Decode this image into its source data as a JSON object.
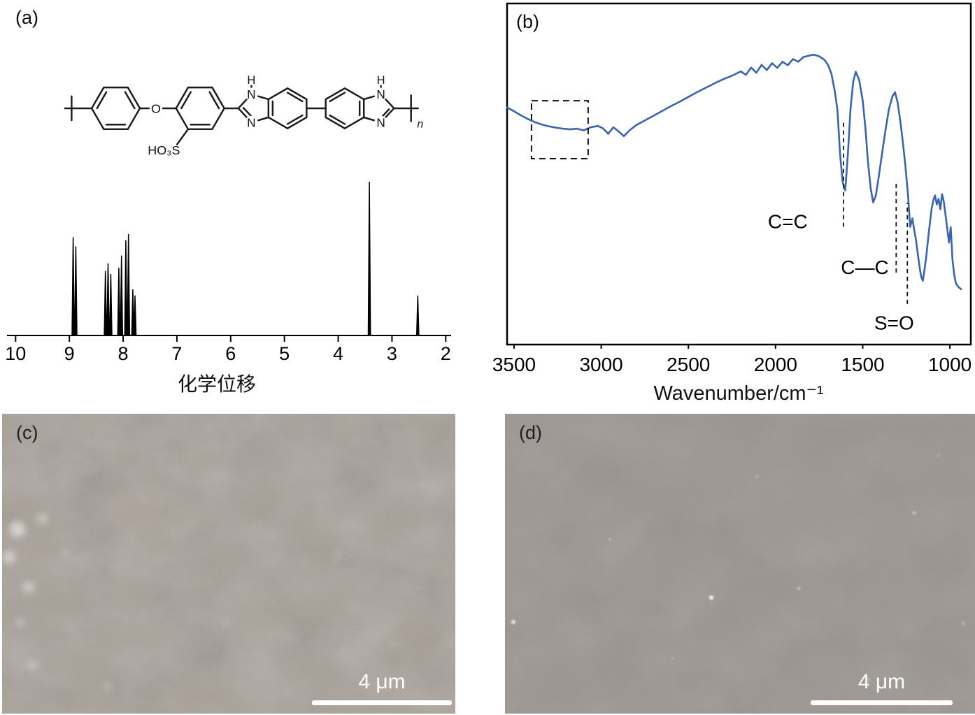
{
  "panels": {
    "a": {
      "label": "(a)"
    },
    "b": {
      "label": "(b)"
    },
    "c": {
      "label": "(c)",
      "scale_bar_text": "4 μm",
      "base_color": "#a79e96"
    },
    "d": {
      "label": "(d)",
      "scale_bar_text": "4 μm",
      "base_color": "#9a938f"
    }
  },
  "structure_labels": {
    "ether_oxygen": "O",
    "sulfonic_acid": "HO₃S",
    "nh_hydrogen_1": "H",
    "nh_hydrogen_2": "H",
    "nitrogen_1": "N",
    "nitrogen_2": "N",
    "nitrogen_3": "N",
    "nitrogen_4": "N",
    "repeat_subscript": "n"
  },
  "chart_data": [
    {
      "type": "line",
      "name": "nmr-spectrum",
      "xlabel": "化学位移",
      "x_ticks": [
        10,
        9,
        8,
        7,
        6,
        5,
        4,
        3,
        2
      ],
      "x_range": [
        10.16,
        1.9
      ],
      "line_color": "#000000",
      "peaks": [
        {
          "x": 8.93,
          "h": 0.64
        },
        {
          "x": 8.88,
          "h": 0.58
        },
        {
          "x": 8.33,
          "h": 0.42
        },
        {
          "x": 8.28,
          "h": 0.47
        },
        {
          "x": 8.23,
          "h": 0.4
        },
        {
          "x": 8.08,
          "h": 0.44
        },
        {
          "x": 8.03,
          "h": 0.52
        },
        {
          "x": 7.95,
          "h": 0.62
        },
        {
          "x": 7.9,
          "h": 0.66
        },
        {
          "x": 7.82,
          "h": 0.3
        },
        {
          "x": 7.78,
          "h": 0.26
        },
        {
          "x": 3.42,
          "h": 1.0
        },
        {
          "x": 2.52,
          "h": 0.26
        }
      ]
    },
    {
      "type": "line",
      "name": "ftir-spectrum",
      "xlabel": "Wavenumber/cm⁻¹",
      "x_ticks": [
        3500,
        3000,
        2500,
        2000,
        1500,
        1000
      ],
      "x_range": [
        3540,
        880
      ],
      "line_color": "#3a64ae",
      "dashed_box": {
        "x1": 3400,
        "x2": 3075,
        "y1": 0.545,
        "y2": 0.715
      },
      "annotations": [
        {
          "label": "C=C",
          "lx": 1930,
          "ly": 0.36,
          "wx": 1610,
          "y1": 0.345,
          "y2": 0.655
        },
        {
          "label": "C—C",
          "lx": 1488,
          "ly": 0.225,
          "wx": 1308,
          "y1": 0.211,
          "y2": 0.477
        },
        {
          "label": "S=O",
          "lx": 1320,
          "ly": 0.062,
          "wx": 1244,
          "y1": 0.119,
          "y2": 0.416
        }
      ],
      "series": [
        {
          "name": "transmittance",
          "x": [
            3540,
            3500,
            3460,
            3420,
            3380,
            3340,
            3300,
            3260,
            3220,
            3180,
            3140,
            3100,
            3060,
            3020,
            2990,
            2960,
            2930,
            2900,
            2870,
            2840,
            2800,
            2750,
            2700,
            2650,
            2600,
            2550,
            2500,
            2450,
            2400,
            2350,
            2300,
            2260,
            2230,
            2200,
            2170,
            2140,
            2110,
            2080,
            2050,
            2020,
            1990,
            1960,
            1930,
            1900,
            1870,
            1840,
            1810,
            1780,
            1750,
            1720,
            1700,
            1680,
            1660,
            1645,
            1630,
            1615,
            1600,
            1585,
            1570,
            1555,
            1540,
            1520,
            1500,
            1485,
            1470,
            1455,
            1440,
            1425,
            1410,
            1390,
            1370,
            1350,
            1330,
            1315,
            1300,
            1285,
            1270,
            1255,
            1240,
            1228,
            1215,
            1205,
            1195,
            1185,
            1175,
            1165,
            1155,
            1145,
            1135,
            1125,
            1115,
            1105,
            1095,
            1085,
            1075,
            1065,
            1055,
            1045,
            1035,
            1025,
            1015,
            1005,
            995,
            985,
            975,
            965,
            950,
            935
          ],
          "y": [
            0.695,
            0.684,
            0.672,
            0.661,
            0.652,
            0.645,
            0.64,
            0.636,
            0.633,
            0.631,
            0.633,
            0.628,
            0.637,
            0.641,
            0.634,
            0.618,
            0.637,
            0.625,
            0.611,
            0.627,
            0.643,
            0.657,
            0.671,
            0.685,
            0.699,
            0.712,
            0.726,
            0.74,
            0.753,
            0.766,
            0.778,
            0.786,
            0.793,
            0.801,
            0.791,
            0.812,
            0.797,
            0.82,
            0.805,
            0.825,
            0.811,
            0.829,
            0.819,
            0.837,
            0.829,
            0.843,
            0.847,
            0.85,
            0.845,
            0.835,
            0.821,
            0.795,
            0.742,
            0.688,
            0.558,
            0.476,
            0.452,
            0.56,
            0.69,
            0.77,
            0.8,
            0.775,
            0.715,
            0.638,
            0.538,
            0.46,
            0.417,
            0.437,
            0.485,
            0.557,
            0.627,
            0.69,
            0.727,
            0.74,
            0.711,
            0.657,
            0.594,
            0.524,
            0.437,
            0.345,
            0.37,
            0.337,
            0.309,
            0.269,
            0.231,
            0.199,
            0.187,
            0.221,
            0.259,
            0.309,
            0.354,
            0.397,
            0.423,
            0.437,
            0.411,
            0.427,
            0.397,
            0.441,
            0.419,
            0.379,
            0.339,
            0.299,
            0.344,
            0.249,
            0.204,
            0.179,
            0.168,
            0.162
          ]
        }
      ]
    }
  ]
}
